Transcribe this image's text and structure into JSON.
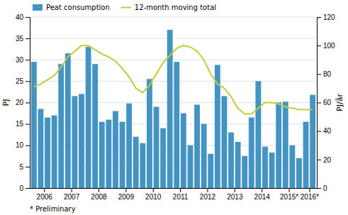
{
  "chart_data": {
    "type": "bar",
    "categories": [
      "2006",
      null,
      null,
      null,
      "2007",
      null,
      null,
      null,
      "2008",
      null,
      null,
      null,
      "2009",
      null,
      null,
      null,
      "2010",
      null,
      null,
      null,
      "2011",
      null,
      null,
      null,
      "2012",
      null,
      null,
      null,
      "2013",
      null,
      null,
      null,
      "2014",
      null,
      null,
      null,
      "2015*",
      null,
      null,
      null,
      "2016*",
      null
    ],
    "series": [
      {
        "name": "Peat consumption",
        "type": "bar",
        "color": "#4393c3",
        "values": [
          29.5,
          18.5,
          16.5,
          17.0,
          29.0,
          31.5,
          21.5,
          22.0,
          33.0,
          29.0,
          15.5,
          16.0,
          18.0,
          15.5,
          19.8,
          12.0,
          10.5,
          25.5,
          19.0,
          14.0,
          37.0,
          29.5,
          17.5,
          10.0,
          19.5,
          15.0,
          8.0,
          28.8,
          21.5,
          13.0,
          10.8,
          7.5,
          16.5,
          25.0,
          9.7,
          8.3,
          20.0,
          20.2,
          10.0,
          7.0,
          15.5,
          21.8
        ]
      },
      {
        "name": "12-month moving total",
        "type": "line",
        "axis": "y2",
        "color": "#bfce3a",
        "values": [
          71,
          73,
          76,
          79,
          85,
          92,
          96,
          100,
          100,
          97,
          94,
          92,
          89,
          84,
          78,
          70,
          67,
          72,
          80,
          88,
          93,
          98,
          100,
          99,
          96,
          90,
          80,
          73,
          70,
          64,
          56,
          52,
          52,
          56,
          60,
          60,
          59,
          57,
          56,
          55,
          55,
          55
        ]
      }
    ],
    "ylabel": "PJ",
    "y2label": "PJ/år",
    "ylim": [
      0,
      40
    ],
    "yticks": [
      0,
      5,
      10,
      15,
      20,
      25,
      30,
      35,
      40
    ],
    "y2lim": [
      0,
      120
    ],
    "y2ticks": [
      0,
      20,
      40,
      60,
      80,
      100,
      120
    ],
    "grid": true,
    "legend": "top-left",
    "annotations": [
      "* Preliminary"
    ]
  }
}
